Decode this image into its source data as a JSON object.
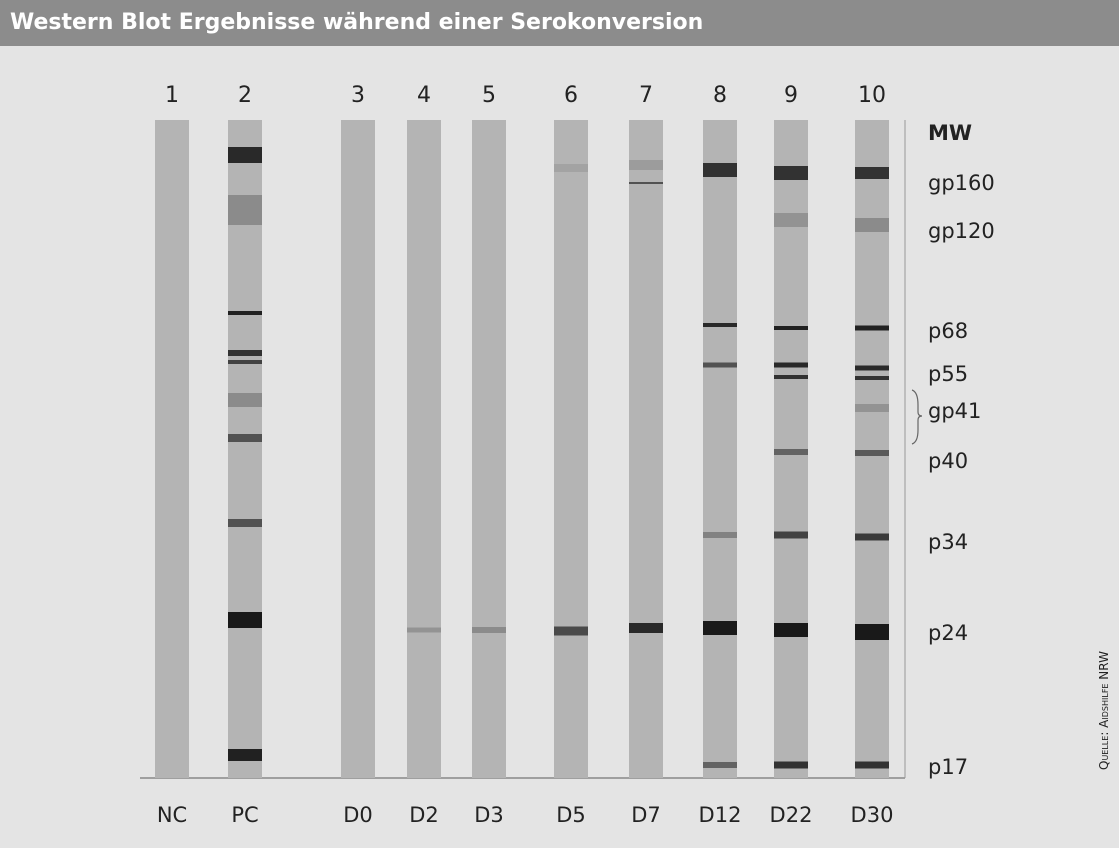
{
  "header": {
    "title": "Western Blot Ergebnisse während einer Serokonversion"
  },
  "lanes": [
    {
      "number": "1",
      "label": "NC"
    },
    {
      "number": "2",
      "label": "PC"
    },
    {
      "number": "3",
      "label": "D0"
    },
    {
      "number": "4",
      "label": "D2"
    },
    {
      "number": "5",
      "label": "D3"
    },
    {
      "number": "6",
      "label": "D5"
    },
    {
      "number": "7",
      "label": "D7"
    },
    {
      "number": "8",
      "label": "D12"
    },
    {
      "number": "9",
      "label": "D22"
    },
    {
      "number": "10",
      "label": "D30"
    }
  ],
  "markers": [
    "MW",
    "gp160",
    "gp120",
    "p68",
    "p55",
    "gp41",
    "p40",
    "p34",
    "p24",
    "p17"
  ],
  "source": "Quelle: Aidshilfe NRW"
}
